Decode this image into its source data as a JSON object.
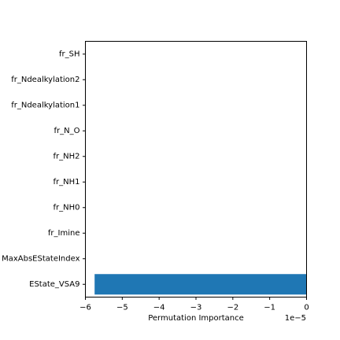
{
  "chart_data": {
    "type": "bar",
    "orientation": "horizontal",
    "categories": [
      "EState_VSA9",
      "MaxAbsEStateIndex",
      "fr_Imine",
      "fr_NH0",
      "fr_NH1",
      "fr_NH2",
      "fr_N_O",
      "fr_Ndealkylation1",
      "fr_Ndealkylation2",
      "fr_SH"
    ],
    "values": [
      -5.75e-05,
      0,
      0,
      0,
      0,
      0,
      0,
      0,
      0,
      0
    ],
    "xlabel": "Permutation Importance",
    "ylabel": "",
    "title": "",
    "xlim": [
      -6e-05,
      0
    ],
    "x_ticks": [
      -6e-05,
      -5e-05,
      -4e-05,
      -3e-05,
      -2e-05,
      -1e-05,
      0
    ],
    "x_tick_labels": [
      "−6",
      "−5",
      "−4",
      "−3",
      "−2",
      "−1",
      "0"
    ],
    "x_offset_label": "1e−5",
    "bar_color": "#1f77b4",
    "grid": false
  }
}
